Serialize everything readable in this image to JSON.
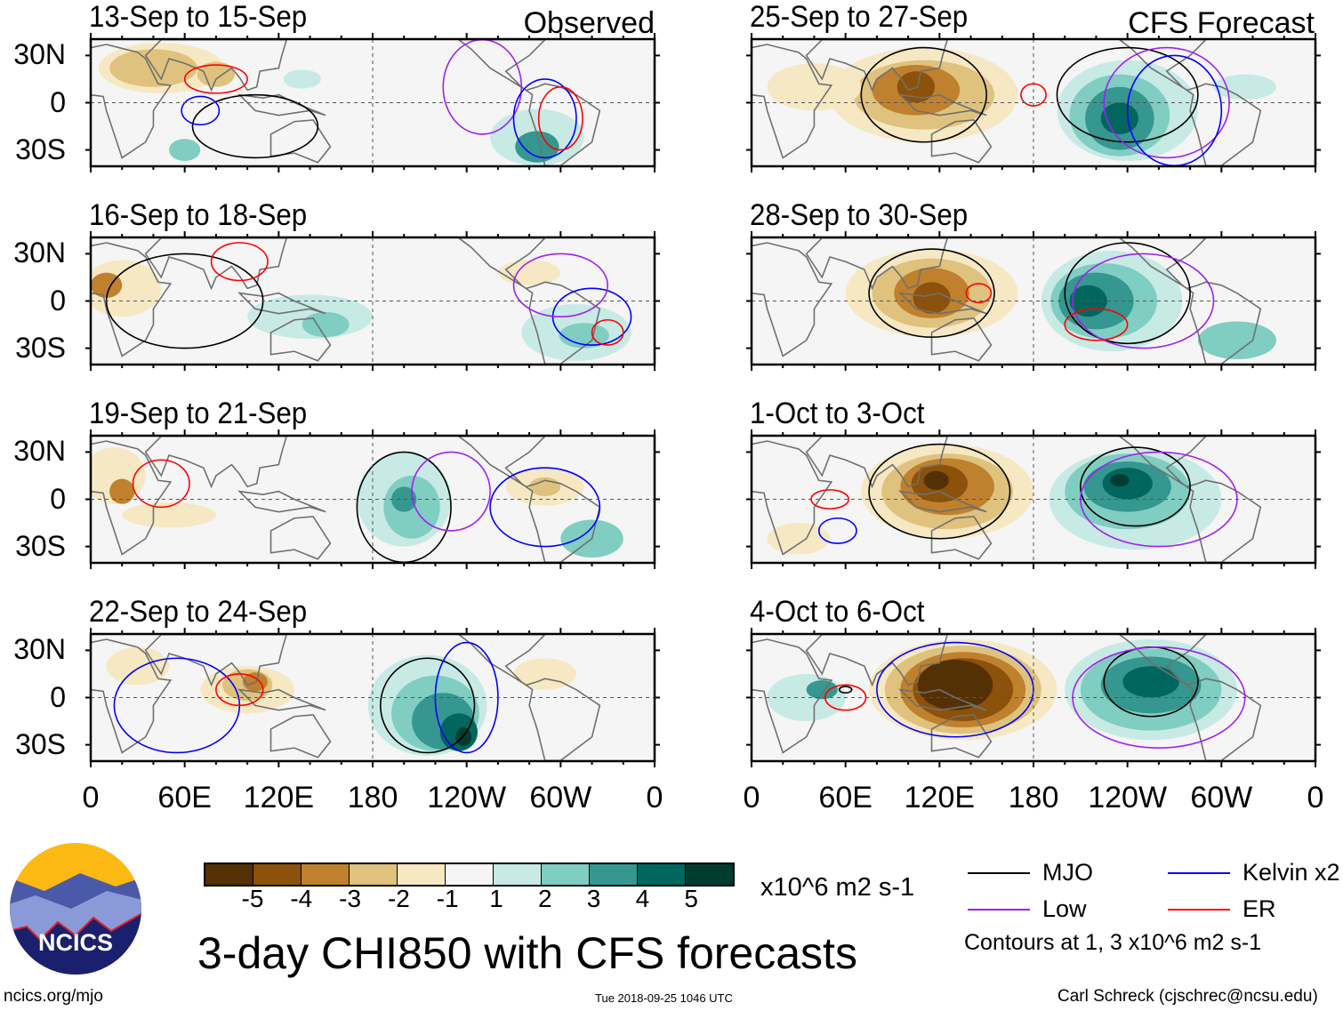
{
  "panels_left_label": "Observed",
  "panels_right_label": "CFS Forecast",
  "chart_data": [
    {
      "type": "heatmap",
      "group": "Observed",
      "title": "13-Sep to 15-Sep"
    },
    {
      "type": "heatmap",
      "group": "Observed",
      "title": "16-Sep to 18-Sep"
    },
    {
      "type": "heatmap",
      "group": "Observed",
      "title": "19-Sep to 21-Sep"
    },
    {
      "type": "heatmap",
      "group": "Observed",
      "title": "22-Sep to 24-Sep"
    },
    {
      "type": "heatmap",
      "group": "CFS Forecast",
      "title": "25-Sep to 27-Sep"
    },
    {
      "type": "heatmap",
      "group": "CFS Forecast",
      "title": "28-Sep to 30-Sep"
    },
    {
      "type": "heatmap",
      "group": "CFS Forecast",
      "title": "1-Oct to 3-Oct"
    },
    {
      "type": "heatmap",
      "group": "CFS Forecast",
      "title": "4-Oct to 6-Oct"
    }
  ],
  "axes": {
    "y_ticks": [
      "30N",
      "0",
      "30S"
    ],
    "x_ticks": [
      "0",
      "60E",
      "120E",
      "180",
      "120W",
      "60W",
      "0"
    ]
  },
  "colorbar": {
    "colors": [
      "#543005",
      "#8c510a",
      "#bf812d",
      "#dfc27d",
      "#f6e8c3",
      "#f5f5f5",
      "#c7eae5",
      "#80cdc1",
      "#35978f",
      "#01665e",
      "#003c30"
    ],
    "labels": [
      "-5",
      "-4",
      "-3",
      "-2",
      "-1",
      "1",
      "2",
      "3",
      "4",
      "5"
    ],
    "units": "x10^6 m2 s-1"
  },
  "legend": [
    {
      "label": "MJO",
      "color": "#000000"
    },
    {
      "label": "Kelvin x2",
      "color": "#0000ff"
    },
    {
      "label": "Low",
      "color": "#a020f0"
    },
    {
      "label": "ER",
      "color": "#ff0000"
    }
  ],
  "contour_note": "Contours at 1, 3 x10^6 m2 s-1",
  "title": "3-day CHI850 with CFS forecasts",
  "logo_text": "NCICS",
  "footer": {
    "url": "ncics.org/mjo",
    "timestamp": "Tue 2018-09-25 1046 UTC",
    "author": "Carl Schreck (cjschrec@ncsu.edu)"
  }
}
